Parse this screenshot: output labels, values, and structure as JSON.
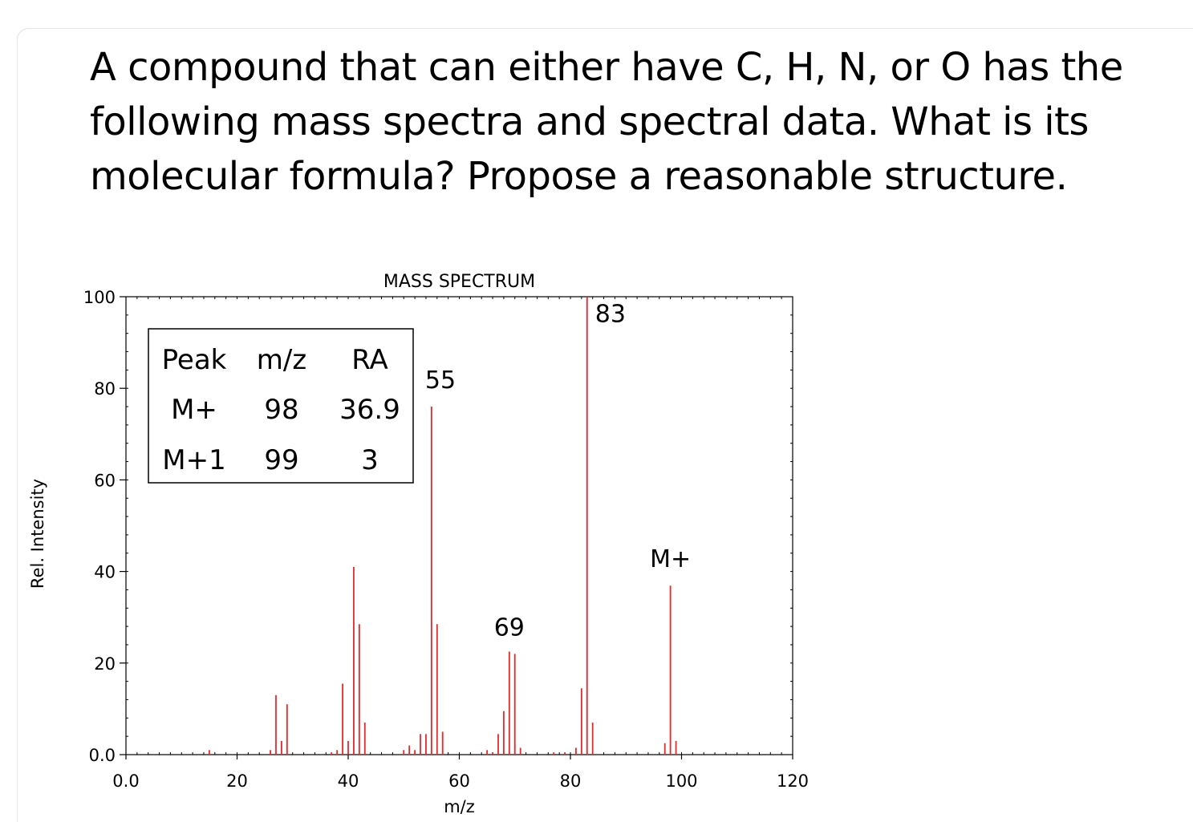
{
  "question": {
    "text": "A compound that can either have C, H, N, or O has the following mass spectra and spectral data. What is its molecular formula? Propose a reasonable structure."
  },
  "chart_data": {
    "type": "bar",
    "title": "MASS SPECTRUM",
    "xlabel": "m/z",
    "ylabel": "Rel. Intensity",
    "xlim": [
      0,
      120
    ],
    "ylim": [
      0,
      100
    ],
    "x_ticks": [
      {
        "value": 0,
        "label": "0.0"
      },
      {
        "value": 20,
        "label": "20"
      },
      {
        "value": 40,
        "label": "40"
      },
      {
        "value": 60,
        "label": "60"
      },
      {
        "value": 80,
        "label": "80"
      },
      {
        "value": 100,
        "label": "100"
      },
      {
        "value": 120,
        "label": "120"
      }
    ],
    "y_ticks": [
      {
        "value": 0,
        "label": "0.0"
      },
      {
        "value": 20,
        "label": "20"
      },
      {
        "value": 40,
        "label": "40"
      },
      {
        "value": 60,
        "label": "60"
      },
      {
        "value": 80,
        "label": "80"
      },
      {
        "value": 100,
        "label": "100"
      }
    ],
    "peak_color": "#e8282b",
    "peaks": [
      {
        "mz": 15,
        "ra": 1
      },
      {
        "mz": 26,
        "ra": 1
      },
      {
        "mz": 27,
        "ra": 13
      },
      {
        "mz": 28,
        "ra": 3
      },
      {
        "mz": 29,
        "ra": 11
      },
      {
        "mz": 37,
        "ra": 0.5
      },
      {
        "mz": 38,
        "ra": 1
      },
      {
        "mz": 39,
        "ra": 15.5
      },
      {
        "mz": 40,
        "ra": 3
      },
      {
        "mz": 41,
        "ra": 41
      },
      {
        "mz": 42,
        "ra": 28.5
      },
      {
        "mz": 43,
        "ra": 7
      },
      {
        "mz": 50,
        "ra": 1
      },
      {
        "mz": 51,
        "ra": 2
      },
      {
        "mz": 52,
        "ra": 1
      },
      {
        "mz": 53,
        "ra": 4.5
      },
      {
        "mz": 54,
        "ra": 4.5
      },
      {
        "mz": 55,
        "ra": 76
      },
      {
        "mz": 56,
        "ra": 28.5
      },
      {
        "mz": 57,
        "ra": 5
      },
      {
        "mz": 65,
        "ra": 1
      },
      {
        "mz": 66,
        "ra": 0.5
      },
      {
        "mz": 67,
        "ra": 4.5
      },
      {
        "mz": 68,
        "ra": 9.5
      },
      {
        "mz": 69,
        "ra": 22.5
      },
      {
        "mz": 70,
        "ra": 22
      },
      {
        "mz": 71,
        "ra": 1.5
      },
      {
        "mz": 77,
        "ra": 0.5
      },
      {
        "mz": 79,
        "ra": 0.5
      },
      {
        "mz": 81,
        "ra": 1.5
      },
      {
        "mz": 82,
        "ra": 14.5
      },
      {
        "mz": 83,
        "ra": 100
      },
      {
        "mz": 84,
        "ra": 7
      },
      {
        "mz": 97,
        "ra": 2.5
      },
      {
        "mz": 98,
        "ra": 36.9
      },
      {
        "mz": 99,
        "ra": 3
      }
    ],
    "annotations": [
      {
        "text": "55",
        "mz": 55,
        "ra": 80
      },
      {
        "text": "69",
        "mz": 69,
        "ra": 26
      },
      {
        "text": "83",
        "mz": 83,
        "ra": 94.5
      },
      {
        "text": "M+",
        "mz": 98,
        "ra": 41
      }
    ],
    "inset_table": {
      "headers": [
        "Peak",
        "m/z",
        "RA"
      ],
      "rows": [
        [
          "M+",
          "98",
          "36.9"
        ],
        [
          "M+1",
          "99",
          "3"
        ]
      ]
    }
  }
}
